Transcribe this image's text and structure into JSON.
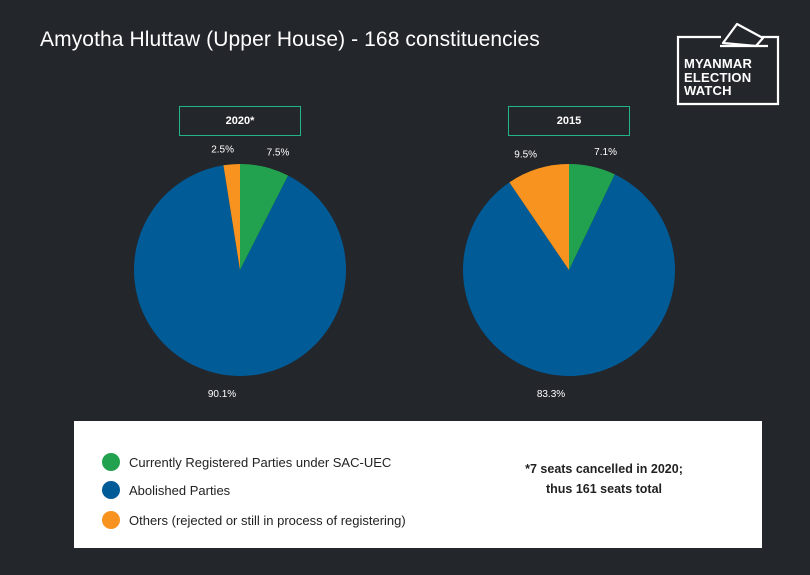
{
  "title": "Amyotha Hluttaw (Upper House) - 168 constituencies",
  "logo": {
    "lines": [
      "MYANMAR",
      "ELECTION",
      "WATCH"
    ],
    "icon": "ballot-box-icon"
  },
  "colors": {
    "background": "#23262b",
    "registered": "#22a24f",
    "abolished": "#005b96",
    "others": "#f7931e",
    "label_border": "#23b58a"
  },
  "chart_data": [
    {
      "type": "pie",
      "title": "2020*",
      "slices": [
        {
          "category": "Currently Registered Parties under SAC-UEC",
          "value": 7.5,
          "label": "7.5%"
        },
        {
          "category": "Abolished Parties",
          "value": 90.1,
          "label": "90.1%"
        },
        {
          "category": "Others (rejected or still in process of registering)",
          "value": 2.5,
          "label": "2.5%"
        }
      ]
    },
    {
      "type": "pie",
      "title": "2015",
      "slices": [
        {
          "category": "Currently Registered Parties under SAC-UEC",
          "value": 7.1,
          "label": "7.1%"
        },
        {
          "category": "Abolished Parties",
          "value": 83.3,
          "label": "83.3%"
        },
        {
          "category": "Others (rejected or still in process of registering)",
          "value": 9.5,
          "label": "9.5%"
        }
      ]
    }
  ],
  "legend": [
    {
      "label": "Currently Registered Parties under SAC-UEC",
      "color": "#22a24f"
    },
    {
      "label": "Abolished Parties",
      "color": "#005b96"
    },
    {
      "label": "Others (rejected or still in process of registering)",
      "color": "#f7931e"
    }
  ],
  "note": {
    "line1": "*7 seats cancelled in 2020;",
    "line2": "thus 161 seats total"
  }
}
